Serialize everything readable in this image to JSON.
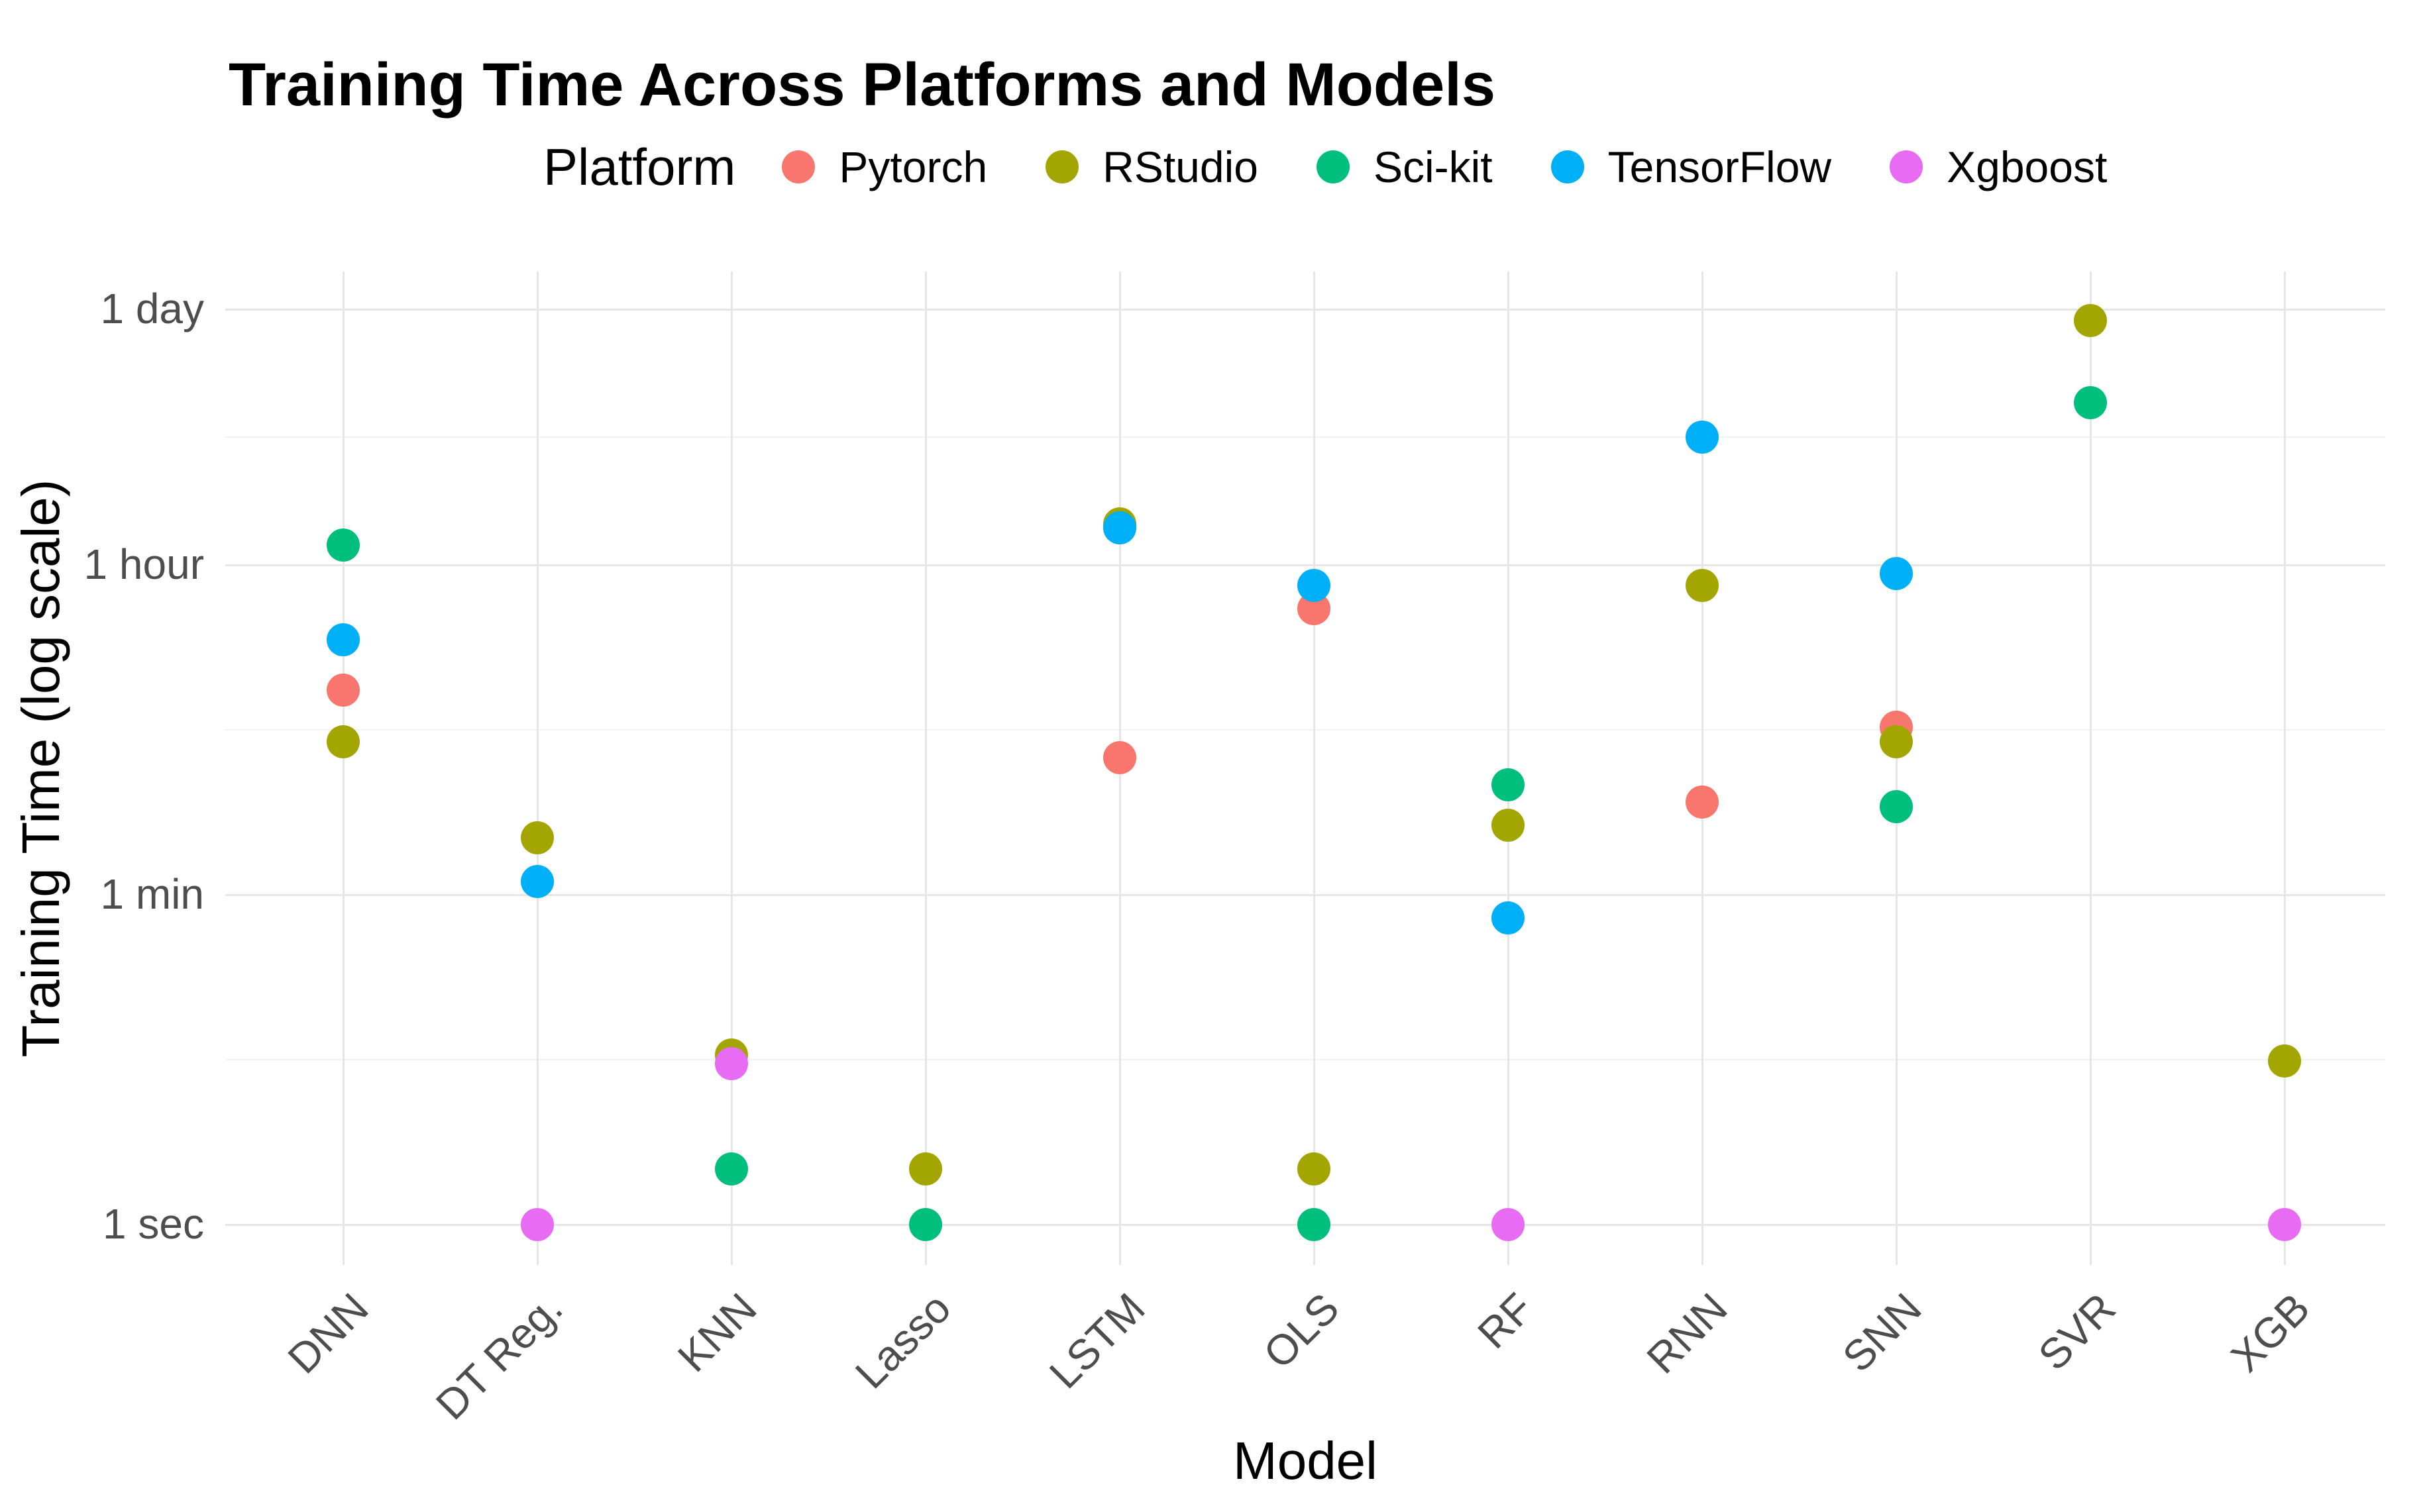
{
  "chart_data": {
    "type": "scatter",
    "title": "Training Time Across Platforms and Models",
    "xlabel": "Model",
    "ylabel": "Training Time (log scale)",
    "legend_title": "Platform",
    "legend_position": "top",
    "grid": true,
    "y_scale": "log10 seconds",
    "y_ticks": [
      {
        "label": "1 sec",
        "seconds": 1
      },
      {
        "label": "1 min",
        "seconds": 60
      },
      {
        "label": "1 hour",
        "seconds": 3600
      },
      {
        "label": "1 day",
        "seconds": 86400
      }
    ],
    "x_categories": [
      "DNN",
      "DT Reg.",
      "KNN",
      "Lasso",
      "LSTM",
      "OLS",
      "RF",
      "RNN",
      "SNN",
      "SVR",
      "XGB"
    ],
    "series": [
      {
        "name": "Pytorch",
        "color": "#F8766D",
        "points": [
          {
            "model": "DNN",
            "seconds": 760
          },
          {
            "model": "LSTM",
            "seconds": 330
          },
          {
            "model": "OLS",
            "seconds": 2100
          },
          {
            "model": "RNN",
            "seconds": 190
          },
          {
            "model": "SNN",
            "seconds": 480
          }
        ]
      },
      {
        "name": "RStudio",
        "color": "#A3A500",
        "points": [
          {
            "model": "DNN",
            "seconds": 400
          },
          {
            "model": "DT Reg.",
            "seconds": 122
          },
          {
            "model": "KNN",
            "seconds": 8.2
          },
          {
            "model": "Lasso",
            "seconds": 2
          },
          {
            "model": "LSTM",
            "seconds": 6000
          },
          {
            "model": "OLS",
            "seconds": 2
          },
          {
            "model": "RF",
            "seconds": 142
          },
          {
            "model": "RNN",
            "seconds": 2800
          },
          {
            "model": "SNN",
            "seconds": 400
          },
          {
            "model": "SVR",
            "seconds": 75000
          },
          {
            "model": "XGB",
            "seconds": 7.6
          }
        ]
      },
      {
        "name": "Sci-kit",
        "color": "#00BF7D",
        "points": [
          {
            "model": "DNN",
            "seconds": 4600
          },
          {
            "model": "KNN",
            "seconds": 2
          },
          {
            "model": "Lasso",
            "seconds": 1
          },
          {
            "model": "OLS",
            "seconds": 1
          },
          {
            "model": "RF",
            "seconds": 235
          },
          {
            "model": "SNN",
            "seconds": 180
          },
          {
            "model": "SVR",
            "seconds": 27000
          }
        ]
      },
      {
        "name": "TensorFlow",
        "color": "#00B0F6",
        "points": [
          {
            "model": "DNN",
            "seconds": 1430
          },
          {
            "model": "DT Reg.",
            "seconds": 71
          },
          {
            "model": "LSTM",
            "seconds": 5700
          },
          {
            "model": "OLS",
            "seconds": 2790
          },
          {
            "model": "RF",
            "seconds": 45
          },
          {
            "model": "RNN",
            "seconds": 17600
          },
          {
            "model": "SNN",
            "seconds": 3250
          }
        ]
      },
      {
        "name": "Xgboost",
        "color": "#E76BF3",
        "points": [
          {
            "model": "DT Reg.",
            "seconds": 1
          },
          {
            "model": "KNN",
            "seconds": 7.4
          },
          {
            "model": "RF",
            "seconds": 1
          },
          {
            "model": "XGB",
            "seconds": 1
          }
        ]
      }
    ],
    "colors": {
      "background": "#FFFFFF",
      "grid_major": "#E6E6E6",
      "grid_minor": "#F2F2F2",
      "tick_text": "#4D4D4D",
      "title_text": "#000000"
    }
  }
}
